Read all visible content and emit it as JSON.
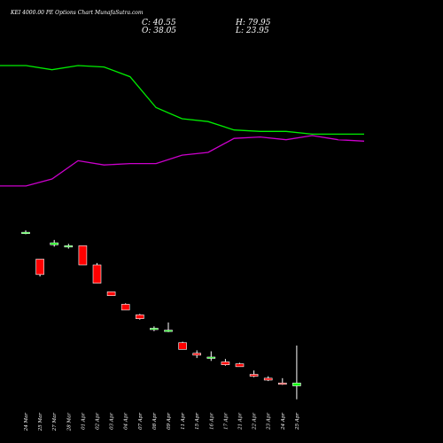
{
  "header": {
    "title": "KEI 4000.00 PE Options Chart MunafaSutra.com",
    "close": "C: 40.55",
    "open": "O: 38.05",
    "high": "H: 79.95",
    "low": "L: 23.95"
  },
  "colors": {
    "background": "#000000",
    "up": "#00ff00",
    "down": "#ff0000",
    "line_green": "#00ee00",
    "line_magenta": "#cc00cc",
    "text": "#ffffff"
  },
  "chart_data": [
    {
      "type": "candlestick",
      "categories": [
        "24 Mar",
        "25 Mar",
        "27 Mar",
        "28 Mar",
        "01 Apr",
        "02 Apr",
        "03 Apr",
        "04 Apr",
        "07 Apr",
        "08 Apr",
        "09 Apr",
        "11 Apr",
        "15 Apr",
        "16 Apr",
        "17 Apr",
        "21 Apr",
        "22 Apr",
        "23 Apr",
        "24 Apr",
        "25 Apr"
      ],
      "ohlc": [
        [
          198,
          200,
          196,
          198
        ],
        [
          170,
          170,
          152,
          154
        ],
        [
          185,
          190,
          183,
          187
        ],
        [
          183,
          186,
          181,
          184
        ],
        [
          184,
          184,
          164,
          164
        ],
        [
          164,
          166,
          145,
          145
        ],
        [
          136,
          136,
          132,
          132
        ],
        [
          123,
          124,
          117,
          117
        ],
        [
          112,
          113,
          107,
          108
        ],
        [
          98,
          100,
          95,
          98
        ],
        [
          95,
          104,
          94,
          96
        ],
        [
          83,
          84,
          76,
          76
        ],
        [
          72,
          75,
          67,
          70
        ],
        [
          68,
          74,
          64,
          68
        ],
        [
          63,
          66,
          59,
          60
        ],
        [
          61,
          62,
          58,
          58
        ],
        [
          50,
          54,
          47,
          48
        ],
        [
          46,
          48,
          43,
          44
        ],
        [
          41,
          46,
          39,
          40
        ],
        [
          38,
          80,
          24,
          41
        ]
      ]
    },
    {
      "type": "line",
      "series": [
        {
          "color": "#00ee00",
          "values": [
            100,
            100,
            97,
            100,
            99,
            92,
            70,
            62,
            60,
            54,
            53,
            53,
            51,
            51,
            51
          ]
        },
        {
          "color": "#cc00cc",
          "values": [
            14,
            14,
            19,
            32,
            29,
            30,
            30,
            36,
            38,
            48,
            49,
            47,
            50,
            47,
            46
          ]
        }
      ]
    }
  ]
}
